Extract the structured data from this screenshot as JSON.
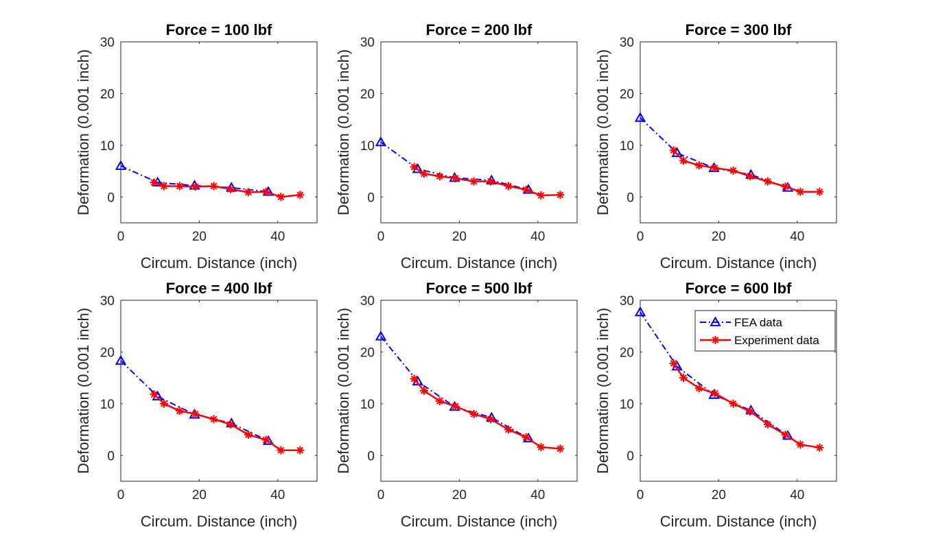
{
  "colors": {
    "fea": "#0000ff",
    "experiment": "#ff0000",
    "axis": "#262626"
  },
  "chart_data": [
    {
      "type": "line",
      "title": "Force = 100 lbf",
      "xlabel": "Circum. Distance (inch)",
      "ylabel": "Deformation (0.001 inch)",
      "xlim": [
        0,
        50
      ],
      "ylim": [
        -5,
        30
      ],
      "xticks": [
        "0",
        "20",
        "40"
      ],
      "yticks": [
        "0",
        "10",
        "20",
        "30"
      ],
      "grid": false,
      "series": [
        {
          "name": "FEA data",
          "marker": "triangle",
          "linestyle": "dash-dot",
          "x": [
            0,
            9.4,
            18.8,
            28.2,
            37.6
          ],
          "y": [
            6.0,
            2.8,
            2.2,
            1.8,
            1.0
          ]
        },
        {
          "name": "Experiment data",
          "marker": "asterisk",
          "linestyle": "solid",
          "x": [
            8.5,
            11.0,
            15.0,
            19.0,
            23.7,
            28.0,
            32.5,
            37.0,
            40.8,
            45.7
          ],
          "y": [
            2.8,
            2.1,
            2.1,
            2.0,
            2.1,
            1.5,
            0.9,
            1.0,
            0.0,
            0.4
          ]
        }
      ]
    },
    {
      "type": "line",
      "title": "Force = 200 lbf",
      "xlabel": "Circum. Distance (inch)",
      "ylabel": "Deformation (0.001 inch)",
      "xlim": [
        0,
        50
      ],
      "ylim": [
        -5,
        30
      ],
      "xticks": [
        "0",
        "20",
        "40"
      ],
      "yticks": [
        "0",
        "10",
        "20",
        "30"
      ],
      "grid": false,
      "series": [
        {
          "name": "FEA data",
          "marker": "triangle",
          "linestyle": "dash-dot",
          "x": [
            0,
            9.4,
            18.8,
            28.2,
            37.6
          ],
          "y": [
            10.6,
            5.4,
            3.7,
            3.2,
            1.4
          ]
        },
        {
          "name": "Experiment data",
          "marker": "asterisk",
          "linestyle": "solid",
          "x": [
            8.5,
            11.0,
            15.0,
            19.0,
            23.7,
            28.0,
            32.5,
            37.0,
            40.8,
            45.7
          ],
          "y": [
            5.8,
            4.5,
            4.0,
            3.6,
            3.0,
            3.0,
            2.1,
            1.4,
            0.3,
            0.4
          ]
        }
      ]
    },
    {
      "type": "line",
      "title": "Force = 300 lbf",
      "xlabel": "Circum. Distance (inch)",
      "ylabel": "Deformation (0.001 inch)",
      "xlim": [
        0,
        50
      ],
      "ylim": [
        -5,
        30
      ],
      "xticks": [
        "0",
        "20",
        "40"
      ],
      "yticks": [
        "0",
        "10",
        "20",
        "30"
      ],
      "grid": false,
      "series": [
        {
          "name": "FEA data",
          "marker": "triangle",
          "linestyle": "dash-dot",
          "x": [
            0,
            9.4,
            18.8,
            28.2,
            37.6
          ],
          "y": [
            15.3,
            8.5,
            5.6,
            4.3,
            1.8
          ]
        },
        {
          "name": "Experiment data",
          "marker": "asterisk",
          "linestyle": "solid",
          "x": [
            8.5,
            11.0,
            15.0,
            19.0,
            23.7,
            28.0,
            32.5,
            37.0,
            40.8,
            45.7
          ],
          "y": [
            9.0,
            7.0,
            6.1,
            5.6,
            5.1,
            4.0,
            3.0,
            2.0,
            1.0,
            1.0
          ]
        }
      ]
    },
    {
      "type": "line",
      "title": "Force = 400 lbf",
      "xlabel": "Circum. Distance (inch)",
      "ylabel": "Deformation (0.001 inch)",
      "xlim": [
        0,
        50
      ],
      "ylim": [
        -5,
        30
      ],
      "xticks": [
        "0",
        "20",
        "40"
      ],
      "yticks": [
        "0",
        "10",
        "20",
        "30"
      ],
      "grid": false,
      "series": [
        {
          "name": "FEA data",
          "marker": "triangle",
          "linestyle": "dash-dot",
          "x": [
            0,
            9.4,
            18.8,
            28.2,
            37.6
          ],
          "y": [
            18.3,
            11.4,
            7.9,
            6.2,
            2.8
          ]
        },
        {
          "name": "Experiment data",
          "marker": "asterisk",
          "linestyle": "solid",
          "x": [
            8.5,
            11.0,
            15.0,
            19.0,
            23.7,
            28.0,
            32.5,
            37.0,
            40.8,
            45.7
          ],
          "y": [
            11.8,
            10.0,
            8.6,
            8.0,
            7.0,
            6.0,
            4.0,
            3.0,
            1.0,
            1.0
          ]
        }
      ]
    },
    {
      "type": "line",
      "title": "Force = 500 lbf",
      "xlabel": "Circum. Distance (inch)",
      "ylabel": "Deformation (0.001 inch)",
      "xlim": [
        0,
        50
      ],
      "ylim": [
        -5,
        30
      ],
      "xticks": [
        "0",
        "20",
        "40"
      ],
      "yticks": [
        "0",
        "10",
        "20",
        "30"
      ],
      "grid": false,
      "series": [
        {
          "name": "FEA data",
          "marker": "triangle",
          "linestyle": "dash-dot",
          "x": [
            0,
            9.4,
            18.8,
            28.2,
            37.6
          ],
          "y": [
            23.0,
            14.3,
            9.4,
            7.3,
            3.3
          ]
        },
        {
          "name": "Experiment data",
          "marker": "asterisk",
          "linestyle": "solid",
          "x": [
            8.5,
            11.0,
            15.0,
            19.0,
            23.7,
            28.0,
            32.5,
            37.0,
            40.8,
            45.7
          ],
          "y": [
            14.8,
            12.5,
            10.5,
            9.5,
            8.0,
            7.0,
            5.0,
            3.5,
            1.6,
            1.3
          ]
        }
      ]
    },
    {
      "type": "line",
      "title": "Force = 600 lbf",
      "xlabel": "Circum. Distance (inch)",
      "ylabel": "Deformation (0.001 inch)",
      "xlim": [
        0,
        50
      ],
      "ylim": [
        -5,
        30
      ],
      "xticks": [
        "0",
        "20",
        "40"
      ],
      "yticks": [
        "0",
        "10",
        "20",
        "30"
      ],
      "grid": false,
      "legend": "top-right",
      "series": [
        {
          "name": "FEA data",
          "marker": "triangle",
          "linestyle": "dash-dot",
          "x": [
            0,
            9.4,
            18.8,
            28.2,
            37.6
          ],
          "y": [
            27.7,
            17.2,
            11.7,
            8.7,
            3.8
          ]
        },
        {
          "name": "Experiment data",
          "marker": "asterisk",
          "linestyle": "solid",
          "x": [
            8.5,
            11.0,
            15.0,
            19.0,
            23.7,
            28.0,
            32.5,
            37.0,
            40.8,
            45.7
          ],
          "y": [
            17.8,
            15.0,
            13.0,
            12.0,
            10.0,
            8.5,
            6.0,
            4.0,
            2.1,
            1.5
          ]
        }
      ]
    }
  ]
}
